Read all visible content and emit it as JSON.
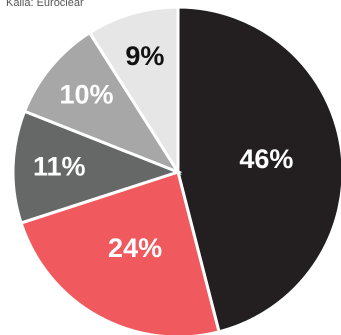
{
  "chart_data": {
    "type": "pie",
    "source": "Källa: Euroclear",
    "categories": [
      null,
      null,
      null,
      null,
      null
    ],
    "values": [
      46,
      24,
      11,
      10,
      9
    ],
    "value_labels": [
      "46%",
      "24%",
      "11%",
      "10%",
      "9%"
    ],
    "colors": [
      "#231f20",
      "#f05a5f",
      "#656867",
      "#a7a7a7",
      "#e6e6e6"
    ]
  }
}
